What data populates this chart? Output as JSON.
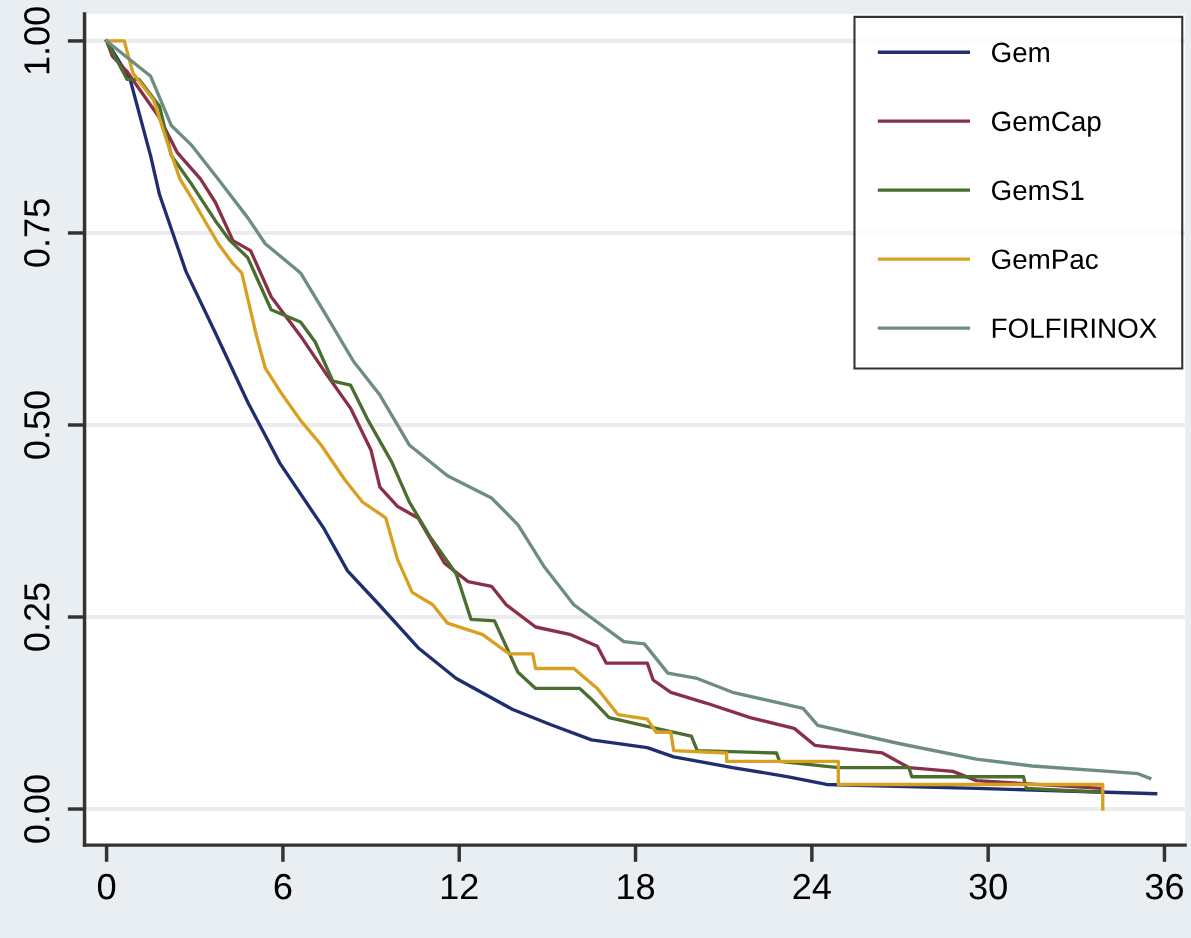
{
  "chart_data": {
    "type": "line",
    "xlim": [
      -0.75,
      36.7
    ],
    "xticks": [
      0,
      6,
      12,
      18,
      24,
      30,
      36
    ],
    "ylim": [
      -0.047,
      1.035
    ],
    "yticks": [
      {
        "value": 0,
        "label": "0.00"
      },
      {
        "value": 0.25,
        "label": "0.25"
      },
      {
        "value": 0.5,
        "label": "0.50"
      },
      {
        "value": 0.75,
        "label": "0.75"
      },
      {
        "value": 1,
        "label": "1.00"
      }
    ],
    "grid": "y",
    "legend": "top right",
    "line_style": "solid",
    "series": [
      {
        "name": "Gem",
        "color": "#1f2e6e",
        "x": [
          0,
          0.8,
          1.5,
          1.8,
          2.7,
          3.7,
          4.8,
          5.9,
          7.4,
          8.2,
          9.3,
          10.6,
          11.9,
          13.8,
          15.1,
          16.5,
          18.4,
          19.3,
          21.3,
          23.2,
          24.5,
          29.6,
          35.7
        ],
        "values": [
          1,
          0.95,
          0.85,
          0.8,
          0.7,
          0.62,
          0.53,
          0.45,
          0.365,
          0.31,
          0.265,
          0.21,
          0.17,
          0.13,
          0.11,
          0.09,
          0.08,
          0.068,
          0.054,
          0.042,
          0.032,
          0.027,
          0.02
        ]
      },
      {
        "name": "GemCap",
        "color": "#8a3046",
        "x": [
          0,
          0.2,
          0.7,
          1.8,
          2.4,
          3.2,
          3.7,
          4.3,
          4.9,
          5.6,
          6.6,
          7.5,
          8.3,
          9.0,
          9.3,
          9.9,
          10.6,
          11.5,
          12.3,
          13.1,
          13.6,
          14.6,
          15.8,
          16.7,
          17.0,
          18.4,
          18.6,
          19.2,
          20.4,
          21.9,
          23.4,
          24.1,
          26.4,
          27.3,
          28.8,
          29.6,
          33.8
        ],
        "values": [
          1,
          0.98,
          0.96,
          0.9,
          0.855,
          0.82,
          0.79,
          0.74,
          0.727,
          0.667,
          0.616,
          0.565,
          0.522,
          0.467,
          0.419,
          0.394,
          0.379,
          0.32,
          0.296,
          0.29,
          0.266,
          0.237,
          0.227,
          0.212,
          0.19,
          0.19,
          0.168,
          0.152,
          0.138,
          0.119,
          0.105,
          0.083,
          0.073,
          0.054,
          0.049,
          0.037,
          0.027
        ]
      },
      {
        "name": "GemS1",
        "color": "#4a6e2e",
        "x": [
          0,
          0.7,
          1.1,
          1.8,
          2.2,
          2.9,
          3.7,
          4.2,
          4.8,
          5.6,
          6.6,
          7.1,
          7.7,
          8.3,
          8.9,
          9.7,
          10.3,
          11.0,
          11.9,
          12.4,
          13.2,
          14.0,
          14.6,
          16.1,
          16.5,
          17.1,
          18.7,
          19.9,
          20.1,
          22.8,
          22.9,
          24.9,
          27.3,
          27.4,
          31.2,
          31.3,
          33.8
        ],
        "values": [
          1,
          0.95,
          0.95,
          0.915,
          0.851,
          0.813,
          0.766,
          0.74,
          0.718,
          0.65,
          0.634,
          0.608,
          0.557,
          0.552,
          0.506,
          0.452,
          0.4,
          0.355,
          0.306,
          0.247,
          0.245,
          0.178,
          0.157,
          0.157,
          0.143,
          0.119,
          0.105,
          0.095,
          0.076,
          0.073,
          0.062,
          0.054,
          0.054,
          0.042,
          0.042,
          0.027,
          0.022
        ]
      },
      {
        "name": "GemPac",
        "color": "#d8a020",
        "x": [
          0,
          0.6,
          0.9,
          1.6,
          2.1,
          2.5,
          2.9,
          3.4,
          3.8,
          4.3,
          4.6,
          5.1,
          5.4,
          5.9,
          6.6,
          7.3,
          8.1,
          8.7,
          9.5,
          9.9,
          10.4,
          11.1,
          11.6,
          12.8,
          13.7,
          14.5,
          14.6,
          15.9,
          16.7,
          17.4,
          18.4,
          18.7,
          19.2,
          19.3,
          21.1,
          21.1,
          24.9,
          24.9,
          33.9,
          33.9
        ],
        "values": [
          1,
          1,
          0.958,
          0.923,
          0.864,
          0.82,
          0.795,
          0.762,
          0.736,
          0.71,
          0.698,
          0.616,
          0.574,
          0.544,
          0.506,
          0.474,
          0.429,
          0.4,
          0.379,
          0.325,
          0.282,
          0.266,
          0.242,
          0.227,
          0.202,
          0.202,
          0.183,
          0.183,
          0.157,
          0.123,
          0.117,
          0.1,
          0.1,
          0.076,
          0.073,
          0.062,
          0.062,
          0.032,
          0.032,
          0.0
        ]
      },
      {
        "name": "FOLFIRINOX",
        "color": "#6e8c82",
        "x": [
          0,
          1.5,
          2.2,
          2.9,
          3.8,
          4.8,
          5.4,
          6.6,
          7.5,
          8.4,
          9.3,
          10.3,
          11.6,
          13.1,
          14.0,
          14.9,
          15.9,
          17.6,
          18.3,
          19.1,
          20.1,
          21.3,
          23.7,
          24.2,
          27.0,
          29.6,
          31.5,
          34.1,
          35.1,
          35.5
        ],
        "values": [
          1,
          0.954,
          0.89,
          0.864,
          0.82,
          0.77,
          0.736,
          0.698,
          0.641,
          0.583,
          0.539,
          0.474,
          0.434,
          0.405,
          0.37,
          0.315,
          0.266,
          0.218,
          0.215,
          0.177,
          0.17,
          0.152,
          0.131,
          0.109,
          0.085,
          0.065,
          0.056,
          0.049,
          0.046,
          0.04
        ]
      }
    ]
  }
}
